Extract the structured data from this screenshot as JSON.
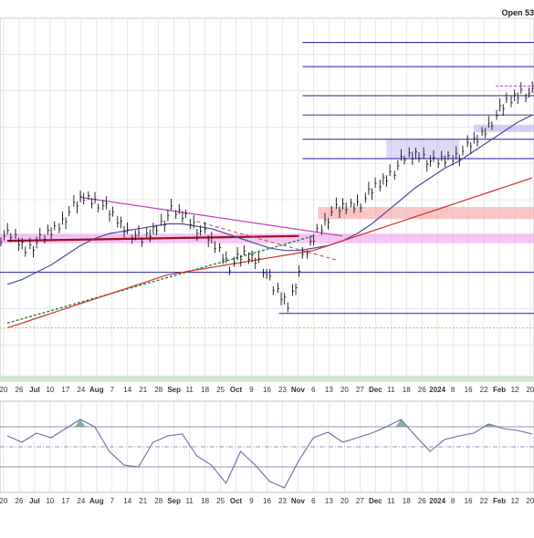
{
  "header": {
    "open_label": "Open 53"
  },
  "colors": {
    "price": "#111111",
    "horizontal_levels": "#3a3aa8",
    "ma_fast": "#4a4a9a",
    "ma_slow": "#d03030",
    "downtrend_line": "#c040c0",
    "support_line": "#a01020",
    "uptrend_dotted": "#20882a",
    "dashed_projection": "#d04040",
    "pink_zone": "#f0a0f0",
    "red_zone": "#f4a0a0",
    "lavender_zone": "#c8b8f0",
    "magenta_dashed": "#e040e0",
    "orange_dotted": "#f0a050",
    "indicator_line": "#6a6aa8",
    "indicator_fill": "#5a9a80",
    "grid": "#d8d8e0"
  },
  "chart_data": [
    {
      "type": "line",
      "panel": "price",
      "chart_style": "ohlc-bars",
      "title": "",
      "xlabel": "",
      "ylabel": "",
      "grid": true,
      "date_range": [
        "2023-06-20",
        "2024-02-26"
      ],
      "x_tick_labels": [
        "20",
        "26",
        "Jul",
        "10",
        "17",
        "24",
        "Aug",
        "7",
        "14",
        "21",
        "28",
        "Sep",
        "11",
        "18",
        "25",
        "Oct",
        "9",
        "16",
        "23",
        "Nov",
        "6",
        "13",
        "20",
        "27",
        "Dec",
        "11",
        "18",
        "26",
        "2024",
        "8",
        "16",
        "22",
        "Feb",
        "12",
        "20"
      ],
      "series": [
        {
          "x": [
            "2023-06-20",
            "2023-06-26",
            "2023-07-03",
            "2023-07-10",
            "2023-07-17",
            "2023-07-24",
            "2023-07-31",
            "2023-08-07",
            "2023-08-14",
            "2023-08-21",
            "2023-08-28",
            "2023-09-05",
            "2023-09-11",
            "2023-09-18",
            "2023-09-25",
            "2023-10-02",
            "2023-10-09",
            "2023-10-16",
            "2023-10-23",
            "2023-10-30",
            "2023-11-06",
            "2023-11-13",
            "2023-11-20",
            "2023-11-27",
            "2023-12-04",
            "2023-12-11",
            "2023-12-18",
            "2023-12-26",
            "2024-01-02",
            "2024-01-08",
            "2024-01-16",
            "2024-01-22",
            "2024-01-29",
            "2024-02-05",
            "2024-02-12",
            "2024-02-20",
            "2024-02-26"
          ],
          "values": [
            0.6,
            0.55,
            0.58,
            0.63,
            0.7,
            0.76,
            0.74,
            0.68,
            0.62,
            0.58,
            0.64,
            0.7,
            0.68,
            0.62,
            0.56,
            0.48,
            0.52,
            0.5,
            0.38,
            0.32,
            0.5,
            0.62,
            0.7,
            0.72,
            0.74,
            0.8,
            0.86,
            0.92,
            0.94,
            0.9,
            0.92,
            0.95,
            1.0,
            1.08,
            1.15,
            1.2,
            1.18
          ]
        }
      ],
      "overlays": [
        {
          "kind": "moving-average",
          "values": [
            0.4,
            0.42,
            0.45,
            0.48,
            0.52,
            0.56,
            0.59,
            0.61,
            0.62,
            0.63,
            0.64,
            0.65,
            0.65,
            0.64,
            0.63,
            0.61,
            0.59,
            0.57,
            0.55,
            0.54,
            0.54,
            0.55,
            0.56,
            0.58,
            0.61,
            0.65,
            0.7,
            0.75,
            0.8,
            0.84,
            0.88,
            0.91,
            0.95,
            0.99,
            1.03,
            1.07,
            1.1
          ]
        },
        {
          "kind": "moving-average",
          "values": [
            0.22,
            0.24,
            0.26,
            0.28,
            0.3,
            0.32,
            0.34,
            0.36,
            0.38,
            0.4,
            0.42,
            0.44,
            0.45,
            0.46,
            0.47,
            0.48,
            0.49,
            0.5,
            0.51,
            0.52,
            0.53,
            0.54,
            0.56,
            0.58,
            0.6,
            0.62,
            0.64,
            0.66,
            0.68,
            0.7,
            0.72,
            0.74,
            0.76,
            0.78,
            0.8,
            0.82,
            0.84
          ]
        },
        {
          "kind": "horizontal-levels",
          "values": [
            1.4,
            1.3,
            1.18,
            1.1,
            1.0,
            0.92,
            0.45,
            0.28
          ]
        },
        {
          "kind": "downtrend-line",
          "points": [
            [
              "2023-07-24",
              0.76
            ],
            [
              "2023-11-27",
              0.6
            ]
          ]
        },
        {
          "kind": "support-line",
          "points": [
            [
              "2023-06-20",
              0.58
            ],
            [
              "2023-11-06",
              0.6
            ]
          ]
        },
        {
          "kind": "uptrend-dotted-line",
          "points": [
            [
              "2023-06-20",
              0.24
            ],
            [
              "2023-11-13",
              0.6
            ]
          ]
        }
      ]
    },
    {
      "type": "line",
      "panel": "indicator",
      "title": "",
      "xlabel": "",
      "ylabel": "",
      "grid": true,
      "reference_lines": [
        0.72,
        0.5,
        0.28
      ],
      "x_tick_labels": [
        "20",
        "26",
        "Jul",
        "10",
        "17",
        "24",
        "Aug",
        "7",
        "14",
        "21",
        "28",
        "Sep",
        "11",
        "18",
        "25",
        "Oct",
        "9",
        "16",
        "23",
        "Nov",
        "6",
        "13",
        "20",
        "27",
        "Dec",
        "11",
        "18",
        "26",
        "2024",
        "8",
        "16",
        "22",
        "Feb",
        "12",
        "20"
      ],
      "series": [
        {
          "values": [
            0.62,
            0.55,
            0.65,
            0.6,
            0.7,
            0.8,
            0.72,
            0.45,
            0.3,
            0.28,
            0.55,
            0.62,
            0.64,
            0.4,
            0.3,
            0.1,
            0.45,
            0.3,
            0.12,
            0.05,
            0.35,
            0.6,
            0.66,
            0.55,
            0.6,
            0.65,
            0.72,
            0.8,
            0.62,
            0.45,
            0.58,
            0.62,
            0.65,
            0.75,
            0.7,
            0.68,
            0.64
          ]
        }
      ]
    }
  ]
}
